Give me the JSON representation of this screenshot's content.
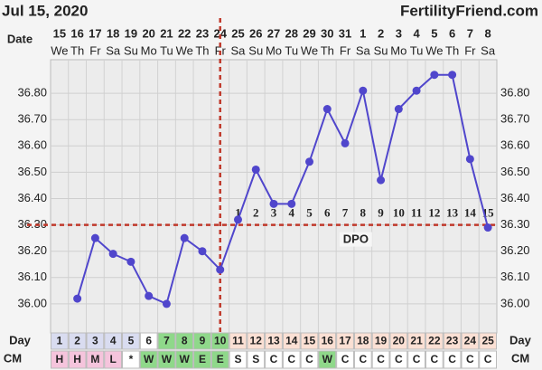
{
  "chart_data": {
    "type": "line",
    "title": "Jul 15, 2020",
    "source": "FertilityFriend.com",
    "date_label": "Date",
    "day_label": "Day",
    "cm_label": "CM",
    "dpo_label": "DPO",
    "categories": [
      "15",
      "16",
      "17",
      "18",
      "19",
      "20",
      "21",
      "22",
      "23",
      "24",
      "25",
      "26",
      "27",
      "28",
      "29",
      "30",
      "31",
      "1",
      "2",
      "3",
      "4",
      "5",
      "6",
      "7",
      "8"
    ],
    "weekdays": [
      "We",
      "Th",
      "Fr",
      "Sa",
      "Su",
      "Mo",
      "Tu",
      "We",
      "Th",
      "Fr",
      "Sa",
      "Su",
      "Mo",
      "Tu",
      "We",
      "Th",
      "Fr",
      "Sa",
      "Su",
      "Mo",
      "Tu",
      "We",
      "Th",
      "Fr",
      "Sa"
    ],
    "days": [
      1,
      2,
      3,
      4,
      5,
      6,
      7,
      8,
      9,
      10,
      11,
      12,
      13,
      14,
      15,
      16,
      17,
      18,
      19,
      20,
      21,
      22,
      23,
      24,
      25
    ],
    "cm": [
      "H",
      "H",
      "M",
      "L",
      "*",
      "W",
      "W",
      "W",
      "E",
      "E",
      "S",
      "S",
      "C",
      "C",
      "C",
      "W",
      "C",
      "C",
      "C",
      "C",
      "C",
      "C",
      "C",
      "C",
      "C"
    ],
    "day_colors": [
      "#d9dcf0",
      "#d9dcf0",
      "#d9dcf0",
      "#d9dcf0",
      "#d9dcf0",
      "#ffffff",
      "#8fd88a",
      "#8fd88a",
      "#8fd88a",
      "#8fd88a",
      "#fbe0d4",
      "#fbe0d4",
      "#fbe0d4",
      "#fbe0d4",
      "#fbe0d4",
      "#fbe0d4",
      "#fbe0d4",
      "#fbe0d4",
      "#fbe0d4",
      "#fbe0d4",
      "#fbe0d4",
      "#fbe0d4",
      "#fbe0d4",
      "#fbe0d4",
      "#fbe0d4"
    ],
    "cm_colors": [
      "#f5c4dc",
      "#f5c4dc",
      "#f5c4dc",
      "#f5c4dc",
      "#ffffff",
      "#8fd88a",
      "#8fd88a",
      "#8fd88a",
      "#8fd88a",
      "#8fd88a",
      "#ffffff",
      "#ffffff",
      "#ffffff",
      "#ffffff",
      "#ffffff",
      "#8fd88a",
      "#ffffff",
      "#ffffff",
      "#ffffff",
      "#ffffff",
      "#ffffff",
      "#ffffff",
      "#ffffff",
      "#ffffff",
      "#ffffff"
    ],
    "dpo": [
      null,
      null,
      null,
      null,
      null,
      null,
      null,
      null,
      null,
      null,
      1,
      2,
      3,
      4,
      5,
      6,
      7,
      8,
      9,
      10,
      11,
      12,
      13,
      14,
      15
    ],
    "values": [
      null,
      36.02,
      36.25,
      36.19,
      36.16,
      36.03,
      36.0,
      36.25,
      36.2,
      36.13,
      36.32,
      36.51,
      36.38,
      36.38,
      36.54,
      36.74,
      36.61,
      36.81,
      36.47,
      36.74,
      36.81,
      36.87,
      36.87,
      36.55,
      36.29
    ],
    "color": "#5046cc",
    "coverline": 36.3,
    "ovulation_day": 10,
    "marker_color": "#c0392b",
    "ylim": [
      35.9,
      36.9
    ],
    "yticks": [
      {
        "value": 36.0,
        "label": "36.00"
      },
      {
        "value": 36.1,
        "label": "36.10"
      },
      {
        "value": 36.2,
        "label": "36.20"
      },
      {
        "value": 36.3,
        "label": "36.30"
      },
      {
        "value": 36.4,
        "label": "36.40"
      },
      {
        "value": 36.5,
        "label": "36.50"
      },
      {
        "value": 36.6,
        "label": "36.60"
      },
      {
        "value": 36.7,
        "label": "36.70"
      },
      {
        "value": 36.8,
        "label": "36.80"
      }
    ],
    "grid": true
  }
}
